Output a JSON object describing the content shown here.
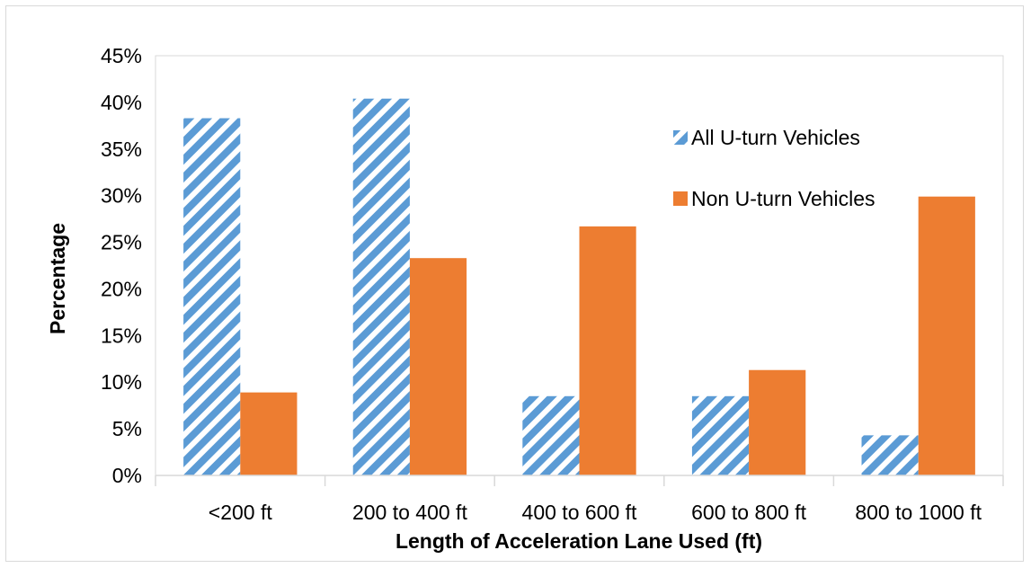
{
  "chart_data": {
    "type": "bar",
    "title": "",
    "xlabel": "Length of Acceleration Lane Used (ft)",
    "ylabel": "Percentage",
    "categories": [
      "<200 ft",
      "200 to 400 ft",
      "400 to 600 ft",
      "600 to 800 ft",
      "800 to 1000 ft"
    ],
    "series": [
      {
        "name": "All U-turn Vehicles",
        "values": [
          38.3,
          40.4,
          8.5,
          8.5,
          4.3
        ],
        "color": "#5b9bd5",
        "pattern": "diagonal-stripes"
      },
      {
        "name": "Non U-turn Vehicles",
        "values": [
          8.9,
          23.3,
          26.7,
          11.3,
          29.9
        ],
        "color": "#ed7d31",
        "pattern": "solid"
      }
    ],
    "ylim": [
      0,
      45
    ],
    "yticks": [
      0,
      5,
      10,
      15,
      20,
      25,
      30,
      35,
      40,
      45
    ],
    "ytick_labels": [
      "0%",
      "5%",
      "10%",
      "15%",
      "20%",
      "25%",
      "30%",
      "35%",
      "40%",
      "45%"
    ],
    "grid": false,
    "legend_position": "top-right"
  }
}
